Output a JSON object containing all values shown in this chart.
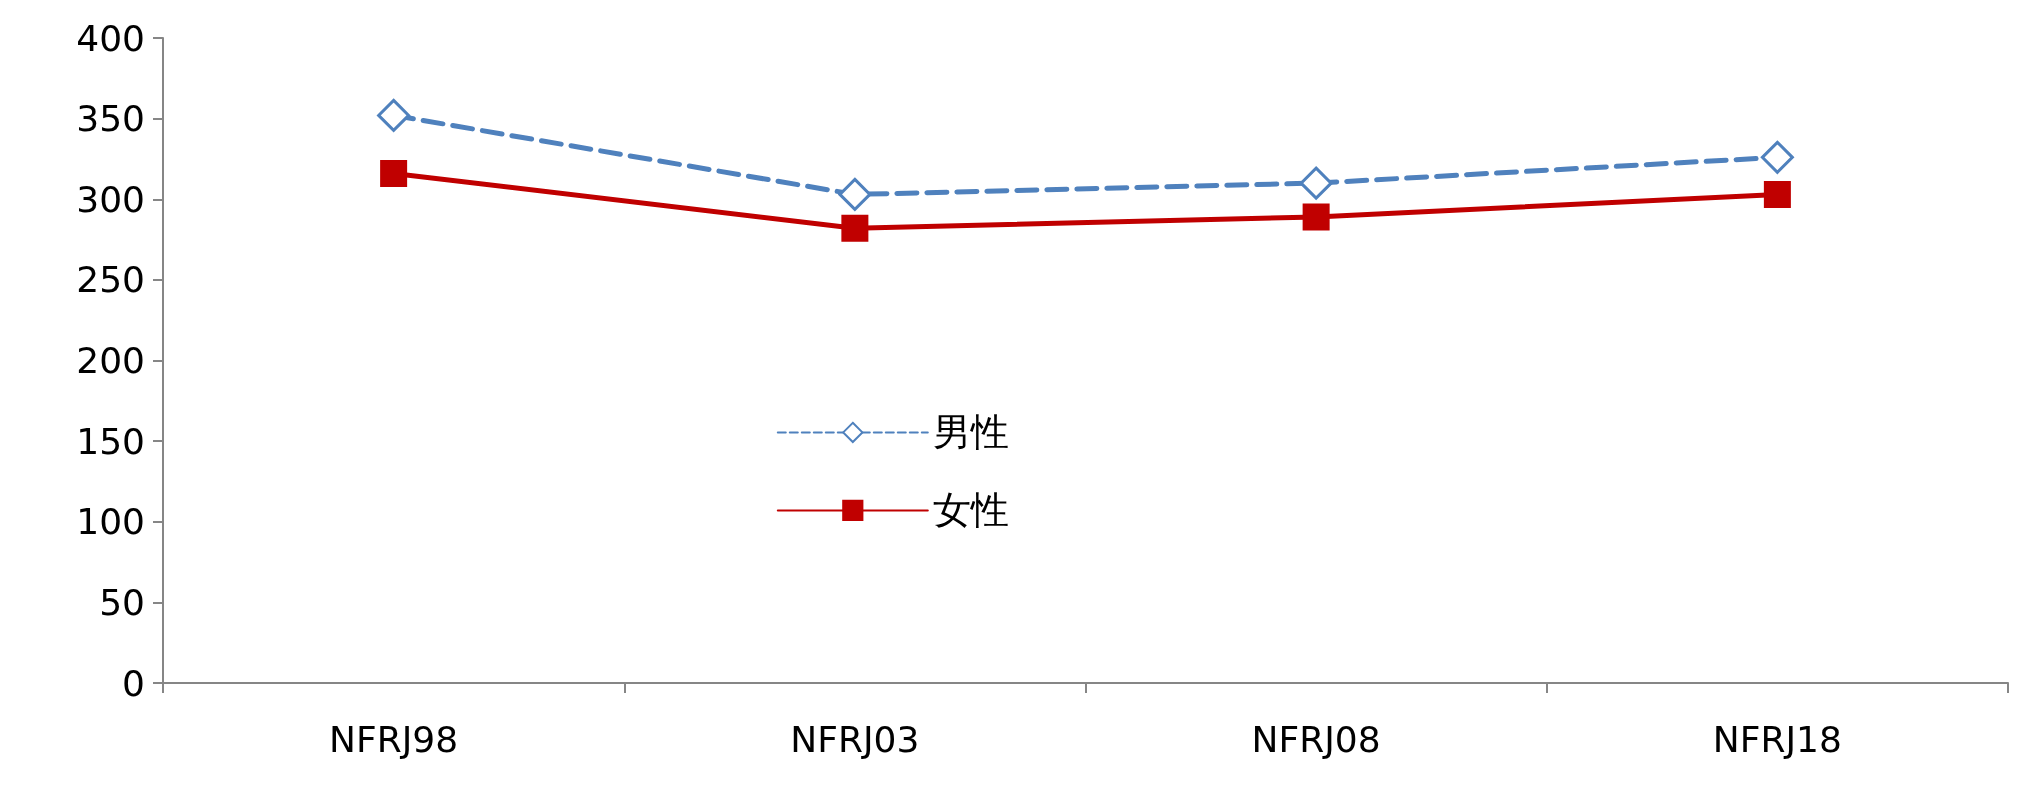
{
  "chart_data": {
    "type": "line",
    "categories": [
      "NFRJ98",
      "NFRJ03",
      "NFRJ08",
      "NFRJ18"
    ],
    "series": [
      {
        "name": "男性",
        "color": "#4f81bd",
        "values": [
          352,
          303,
          310,
          326
        ],
        "marker": "diamond",
        "line_style": "dashed"
      },
      {
        "name": "女性",
        "color": "#c00000",
        "values": [
          316,
          282,
          289,
          303
        ],
        "marker": "square",
        "line_style": "solid"
      }
    ],
    "ylim": [
      0,
      400
    ],
    "yticks": [
      0,
      50,
      100,
      150,
      200,
      250,
      300,
      350,
      400
    ],
    "grid": false,
    "legend": "center"
  }
}
